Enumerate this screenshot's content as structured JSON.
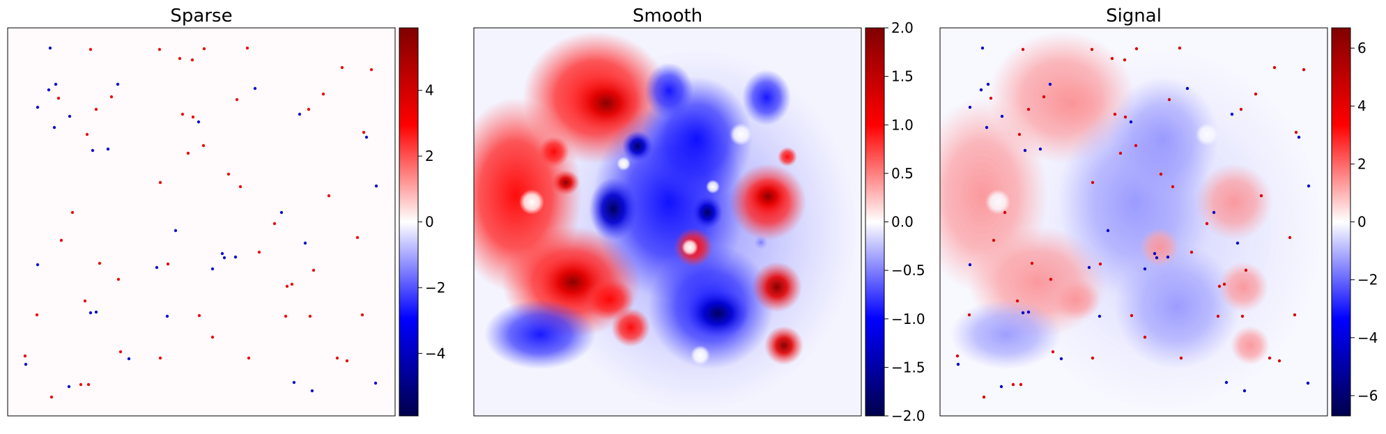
{
  "chart_data": [
    {
      "type": "heatmap",
      "title": "Sparse",
      "colormap": "seismic",
      "colorbar": {
        "vmin": -5.9,
        "vmax": 5.9,
        "ticks": [
          -4,
          -2,
          0,
          2,
          4
        ],
        "tick_labels": [
          "−4",
          "−2",
          "0",
          "2",
          "4"
        ]
      },
      "xticks": [],
      "yticks": [],
      "grid": false
    },
    {
      "type": "heatmap",
      "title": "Smooth",
      "colormap": "seismic",
      "colorbar": {
        "vmin": -2.0,
        "vmax": 2.0,
        "ticks": [
          -2.0,
          -1.5,
          -1.0,
          -0.5,
          0.0,
          0.5,
          1.0,
          1.5,
          2.0
        ],
        "tick_labels": [
          "−2.0",
          "−1.5",
          "−1.0",
          "−0.5",
          "0.0",
          "0.5",
          "1.0",
          "1.5",
          "2.0"
        ]
      },
      "xticks": [],
      "yticks": [],
      "grid": false
    },
    {
      "type": "heatmap",
      "title": "Signal",
      "colormap": "seismic",
      "colorbar": {
        "vmin": -6.7,
        "vmax": 6.7,
        "ticks": [
          -6,
          -4,
          -2,
          0,
          2,
          4,
          6
        ],
        "tick_labels": [
          "−6",
          "−4",
          "−2",
          "0",
          "2",
          "4",
          "6"
        ]
      },
      "xticks": [],
      "yticks": [],
      "grid": false
    }
  ],
  "colors": {
    "strong_negative": "#00004c",
    "negative": "#0000ff",
    "zero": "#ffffff",
    "positive": "#ff0000",
    "strong_positive": "#800000"
  }
}
